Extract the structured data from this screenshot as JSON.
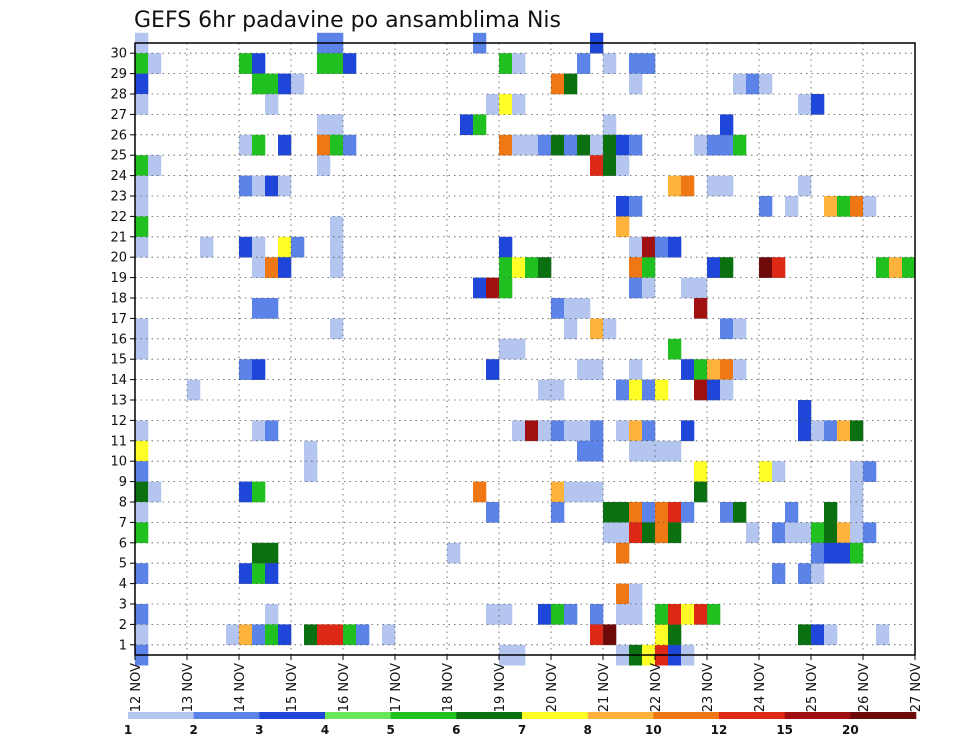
{
  "chart_data": {
    "type": "heatmap",
    "title": "GEFS 6hr padavine po ansamblima Nis",
    "xlabel": "",
    "ylabel": "",
    "x_ticks": [
      "12 NOV",
      "13 NOV",
      "14 NOV",
      "15 NOV",
      "16 NOV",
      "17 NOV",
      "18 NOV",
      "19 NOV",
      "20 NOV",
      "21 NOV",
      "22 NOV",
      "23 NOV",
      "24 NOV",
      "25 NOV",
      "26 NOV",
      "27 NOV"
    ],
    "y_ticks": [
      "1",
      "2",
      "3",
      "4",
      "5",
      "6",
      "7",
      "8",
      "9",
      "10",
      "11",
      "12",
      "13",
      "14",
      "15",
      "16",
      "17",
      "18",
      "19",
      "20",
      "21",
      "22",
      "23",
      "24",
      "25",
      "26",
      "27",
      "28",
      "29",
      "30"
    ],
    "x_range": [
      "12 NOV",
      "27 NOV"
    ],
    "y_range": [
      0,
      30
    ],
    "time_step_hours": 6,
    "grid": true,
    "legend_position": "bottom",
    "color_scale": {
      "levels": [
        "1",
        "2",
        "3",
        "4",
        "5",
        "6",
        "7",
        "8",
        "10",
        "12",
        "15",
        "20"
      ],
      "colors": [
        "#b4c6f0",
        "#5b83e8",
        "#1e46d8",
        "#6ae65a",
        "#20c020",
        "#0a7010",
        "#ffff28",
        "#ffb23c",
        "#f07814",
        "#dc2814",
        "#a01010",
        "#6e0a0a"
      ]
    },
    "cells": [
      [
        "12 NOV 00Z",
        30,
        1
      ],
      [
        "12 NOV 00Z",
        29,
        5
      ],
      [
        "12 NOV 06Z",
        29,
        1
      ],
      [
        "12 NOV 00Z",
        28,
        3
      ],
      [
        "12 NOV 00Z",
        27,
        1
      ],
      [
        "12 NOV 00Z",
        24,
        5
      ],
      [
        "12 NOV 06Z",
        24,
        1
      ],
      [
        "12 NOV 00Z",
        23,
        1
      ],
      [
        "12 NOV 00Z",
        22,
        1
      ],
      [
        "12 NOV 00Z",
        21,
        5
      ],
      [
        "12 NOV 00Z",
        20,
        1
      ],
      [
        "12 NOV 00Z",
        16,
        1
      ],
      [
        "12 NOV 00Z",
        15,
        1
      ],
      [
        "12 NOV 00Z",
        11,
        1
      ],
      [
        "12 NOV 00Z",
        10,
        7
      ],
      [
        "12 NOV 00Z",
        9,
        2
      ],
      [
        "12 NOV 00Z",
        8,
        6
      ],
      [
        "12 NOV 06Z",
        8,
        1
      ],
      [
        "12 NOV 00Z",
        7,
        1
      ],
      [
        "12 NOV 00Z",
        6,
        5
      ],
      [
        "12 NOV 00Z",
        4,
        2
      ],
      [
        "12 NOV 00Z",
        2,
        2
      ],
      [
        "12 NOV 00Z",
        1,
        1
      ],
      [
        "12 NOV 00Z",
        0,
        2
      ],
      [
        "13 NOV 06Z",
        20,
        1
      ],
      [
        "13 NOV 00Z",
        13,
        1
      ],
      [
        "14 NOV 00Z",
        29,
        5
      ],
      [
        "14 NOV 06Z",
        29,
        3
      ],
      [
        "14 NOV 06Z",
        28,
        5
      ],
      [
        "14 NOV 12Z",
        28,
        5
      ],
      [
        "14 NOV 18Z",
        28,
        3
      ],
      [
        "15 NOV 00Z",
        28,
        1
      ],
      [
        "14 NOV 12Z",
        27,
        1
      ],
      [
        "14 NOV 00Z",
        25,
        1
      ],
      [
        "14 NOV 06Z",
        25,
        5
      ],
      [
        "14 NOV 18Z",
        25,
        3
      ],
      [
        "14 NOV 00Z",
        23,
        2
      ],
      [
        "14 NOV 06Z",
        23,
        1
      ],
      [
        "14 NOV 12Z",
        23,
        3
      ],
      [
        "14 NOV 18Z",
        23,
        1
      ],
      [
        "14 NOV 00Z",
        20,
        3
      ],
      [
        "14 NOV 06Z",
        20,
        1
      ],
      [
        "14 NOV 18Z",
        20,
        7
      ],
      [
        "15 NOV 00Z",
        20,
        2
      ],
      [
        "14 NOV 06Z",
        19,
        1
      ],
      [
        "14 NOV 12Z",
        19,
        9
      ],
      [
        "14 NOV 18Z",
        19,
        3
      ],
      [
        "14 NOV 06Z",
        17,
        2
      ],
      [
        "14 NOV 12Z",
        17,
        2
      ],
      [
        "14 NOV 00Z",
        14,
        2
      ],
      [
        "14 NOV 06Z",
        14,
        3
      ],
      [
        "14 NOV 06Z",
        11,
        1
      ],
      [
        "14 NOV 12Z",
        11,
        2
      ],
      [
        "14 NOV 00Z",
        8,
        3
      ],
      [
        "14 NOV 06Z",
        8,
        5
      ],
      [
        "14 NOV 06Z",
        5,
        6
      ],
      [
        "14 NOV 12Z",
        5,
        6
      ],
      [
        "14 NOV 00Z",
        4,
        3
      ],
      [
        "14 NOV 06Z",
        4,
        5
      ],
      [
        "14 NOV 12Z",
        4,
        3
      ],
      [
        "14 NOV 12Z",
        2,
        1
      ],
      [
        "13 NOV 18Z",
        1,
        1
      ],
      [
        "14 NOV 00Z",
        1,
        8
      ],
      [
        "14 NOV 06Z",
        1,
        2
      ],
      [
        "14 NOV 12Z",
        1,
        5
      ],
      [
        "14 NOV 18Z",
        1,
        3
      ],
      [
        "15 NOV 06Z",
        1,
        6
      ],
      [
        "15 NOV 12Z",
        1,
        10
      ],
      [
        "15 NOV 18Z",
        1,
        10
      ],
      [
        "16 NOV 00Z",
        1,
        5
      ],
      [
        "16 NOV 06Z",
        1,
        2
      ],
      [
        "16 NOV 18Z",
        1,
        1
      ],
      [
        "15 NOV 12Z",
        30,
        2
      ],
      [
        "15 NOV 18Z",
        30,
        2
      ],
      [
        "15 NOV 12Z",
        29,
        5
      ],
      [
        "15 NOV 18Z",
        29,
        5
      ],
      [
        "16 NOV 00Z",
        29,
        3
      ],
      [
        "15 NOV 12Z",
        26,
        1
      ],
      [
        "15 NOV 18Z",
        26,
        1
      ],
      [
        "15 NOV 12Z",
        25,
        9
      ],
      [
        "15 NOV 18Z",
        25,
        5
      ],
      [
        "16 NOV 00Z",
        25,
        2
      ],
      [
        "15 NOV 12Z",
        24,
        1
      ],
      [
        "15 NOV 18Z",
        21,
        1
      ],
      [
        "15 NOV 18Z",
        20,
        1
      ],
      [
        "15 NOV 18Z",
        19,
        1
      ],
      [
        "15 NOV 18Z",
        16,
        1
      ],
      [
        "15 NOV 06Z",
        10,
        1
      ],
      [
        "15 NOV 06Z",
        9,
        1
      ],
      [
        "18 NOV 00Z",
        5,
        1
      ],
      [
        "18 NOV 12Z",
        30,
        2
      ],
      [
        "19 NOV 00Z",
        29,
        5
      ],
      [
        "19 NOV 06Z",
        29,
        1
      ],
      [
        "18 NOV 18Z",
        27,
        1
      ],
      [
        "19 NOV 00Z",
        27,
        7
      ],
      [
        "19 NOV 06Z",
        27,
        1
      ],
      [
        "18 NOV 06Z",
        26,
        3
      ],
      [
        "18 NOV 12Z",
        26,
        5
      ],
      [
        "19 NOV 00Z",
        25,
        9
      ],
      [
        "19 NOV 06Z",
        25,
        1
      ],
      [
        "19 NOV 12Z",
        25,
        1
      ],
      [
        "19 NOV 18Z",
        25,
        2
      ],
      [
        "20 NOV 00Z",
        25,
        6
      ],
      [
        "20 NOV 06Z",
        25,
        2
      ],
      [
        "20 NOV 12Z",
        25,
        6
      ],
      [
        "20 NOV 18Z",
        25,
        1
      ],
      [
        "19 NOV 00Z",
        20,
        3
      ],
      [
        "19 NOV 00Z",
        19,
        5
      ],
      [
        "19 NOV 06Z",
        19,
        7
      ],
      [
        "19 NOV 12Z",
        19,
        5
      ],
      [
        "19 NOV 18Z",
        19,
        6
      ],
      [
        "18 NOV 12Z",
        18,
        3
      ],
      [
        "18 NOV 18Z",
        18,
        11
      ],
      [
        "19 NOV 00Z",
        18,
        5
      ],
      [
        "20 NOV 00Z",
        17,
        2
      ],
      [
        "20 NOV 06Z",
        17,
        1
      ],
      [
        "20 NOV 12Z",
        17,
        1
      ],
      [
        "20 NOV 06Z",
        16,
        1
      ],
      [
        "19 NOV 00Z",
        15,
        1
      ],
      [
        "19 NOV 06Z",
        15,
        1
      ],
      [
        "18 NOV 18Z",
        14,
        3
      ],
      [
        "19 NOV 18Z",
        13,
        1
      ],
      [
        "20 NOV 00Z",
        13,
        1
      ],
      [
        "19 NOV 06Z",
        11,
        1
      ],
      [
        "19 NOV 12Z",
        11,
        11
      ],
      [
        "19 NOV 18Z",
        11,
        1
      ],
      [
        "20 NOV 00Z",
        11,
        2
      ],
      [
        "20 NOV 06Z",
        11,
        1
      ],
      [
        "20 NOV 12Z",
        11,
        1
      ],
      [
        "20 NOV 18Z",
        11,
        2
      ],
      [
        "18 NOV 12Z",
        8,
        9
      ],
      [
        "20 NOV 00Z",
        8,
        8
      ],
      [
        "20 NOV 06Z",
        8,
        1
      ],
      [
        "20 NOV 12Z",
        8,
        1
      ],
      [
        "20 NOV 18Z",
        8,
        1
      ],
      [
        "18 NOV 18Z",
        7,
        2
      ],
      [
        "20 NOV 00Z",
        7,
        2
      ],
      [
        "18 NOV 18Z",
        2,
        1
      ],
      [
        "19 NOV 00Z",
        2,
        1
      ],
      [
        "19 NOV 18Z",
        2,
        3
      ],
      [
        "20 NOV 00Z",
        2,
        5
      ],
      [
        "20 NOV 06Z",
        2,
        2
      ],
      [
        "20 NOV 18Z",
        2,
        2
      ],
      [
        "19 NOV 00Z",
        0,
        1
      ],
      [
        "19 NOV 06Z",
        0,
        1
      ],
      [
        "20 NOV 18Z",
        30,
        3
      ],
      [
        "20 NOV 12Z",
        29,
        2
      ],
      [
        "20 NOV 00Z",
        28,
        9
      ],
      [
        "20 NOV 06Z",
        28,
        6
      ],
      [
        "21 NOV 00Z",
        29,
        1
      ],
      [
        "21 NOV 12Z",
        29,
        2
      ],
      [
        "21 NOV 18Z",
        29,
        2
      ],
      [
        "21 NOV 12Z",
        28,
        1
      ],
      [
        "21 NOV 00Z",
        26,
        1
      ],
      [
        "21 NOV 00Z",
        25,
        6
      ],
      [
        "21 NOV 06Z",
        25,
        3
      ],
      [
        "21 NOV 12Z",
        25,
        2
      ],
      [
        "20 NOV 18Z",
        24,
        10
      ],
      [
        "21 NOV 00Z",
        24,
        6
      ],
      [
        "21 NOV 06Z",
        24,
        1
      ],
      [
        "21 NOV 06Z",
        22,
        3
      ],
      [
        "21 NOV 12Z",
        22,
        2
      ],
      [
        "21 NOV 06Z",
        21,
        8
      ],
      [
        "21 NOV 12Z",
        20,
        1
      ],
      [
        "21 NOV 18Z",
        20,
        11
      ],
      [
        "22 NOV 00Z",
        20,
        2
      ],
      [
        "22 NOV 06Z",
        20,
        3
      ],
      [
        "21 NOV 12Z",
        19,
        9
      ],
      [
        "21 NOV 18Z",
        19,
        5
      ],
      [
        "21 NOV 12Z",
        18,
        2
      ],
      [
        "21 NOV 18Z",
        18,
        1
      ],
      [
        "20 NOV 18Z",
        16,
        8
      ],
      [
        "21 NOV 00Z",
        16,
        1
      ],
      [
        "20 NOV 12Z",
        14,
        1
      ],
      [
        "20 NOV 18Z",
        14,
        1
      ],
      [
        "21 NOV 12Z",
        14,
        1
      ],
      [
        "21 NOV 06Z",
        13,
        2
      ],
      [
        "21 NOV 12Z",
        13,
        7
      ],
      [
        "21 NOV 18Z",
        13,
        2
      ],
      [
        "22 NOV 00Z",
        13,
        7
      ],
      [
        "21 NOV 06Z",
        11,
        1
      ],
      [
        "21 NOV 12Z",
        11,
        8
      ],
      [
        "21 NOV 18Z",
        11,
        2
      ],
      [
        "20 NOV 12Z",
        10,
        2
      ],
      [
        "20 NOV 18Z",
        10,
        2
      ],
      [
        "21 NOV 12Z",
        10,
        1
      ],
      [
        "21 NOV 18Z",
        10,
        1
      ],
      [
        "21 NOV 00Z",
        7,
        6
      ],
      [
        "21 NOV 06Z",
        7,
        6
      ],
      [
        "21 NOV 12Z",
        7,
        9
      ],
      [
        "21 NOV 18Z",
        7,
        2
      ],
      [
        "21 NOV 00Z",
        6,
        1
      ],
      [
        "21 NOV 06Z",
        6,
        1
      ],
      [
        "21 NOV 12Z",
        6,
        10
      ],
      [
        "21 NOV 18Z",
        6,
        6
      ],
      [
        "21 NOV 06Z",
        5,
        9
      ],
      [
        "21 NOV 06Z",
        3,
        9
      ],
      [
        "21 NOV 12Z",
        3,
        1
      ],
      [
        "21 NOV 06Z",
        2,
        1
      ],
      [
        "21 NOV 12Z",
        2,
        1
      ],
      [
        "20 NOV 18Z",
        1,
        10
      ],
      [
        "21 NOV 00Z",
        1,
        12
      ],
      [
        "21 NOV 06Z",
        0,
        1
      ],
      [
        "21 NOV 12Z",
        0,
        6
      ],
      [
        "21 NOV 18Z",
        0,
        7
      ],
      [
        "22 NOV 00Z",
        0,
        10
      ],
      [
        "22 NOV 06Z",
        0,
        3
      ],
      [
        "22 NOV 12Z",
        0,
        1
      ],
      [
        "22 NOV 00Z",
        1,
        7
      ],
      [
        "22 NOV 06Z",
        1,
        6
      ],
      [
        "22 NOV 00Z",
        2,
        5
      ],
      [
        "22 NOV 06Z",
        2,
        10
      ],
      [
        "22 NOV 12Z",
        2,
        7
      ],
      [
        "22 NOV 18Z",
        2,
        10
      ],
      [
        "23 NOV 00Z",
        2,
        5
      ],
      [
        "22 NOV 06Z",
        23,
        8
      ],
      [
        "22 NOV 12Z",
        23,
        9
      ],
      [
        "23 NOV 00Z",
        23,
        1
      ],
      [
        "23 NOV 06Z",
        23,
        1
      ],
      [
        "22 NOV 18Z",
        25,
        1
      ],
      [
        "23 NOV 00Z",
        25,
        2
      ],
      [
        "23 NOV 06Z",
        25,
        2
      ],
      [
        "23 NOV 12Z",
        25,
        5
      ],
      [
        "23 NOV 06Z",
        26,
        3
      ],
      [
        "23 NOV 12Z",
        28,
        1
      ],
      [
        "23 NOV 18Z",
        28,
        2
      ],
      [
        "24 NOV 00Z",
        28,
        1
      ],
      [
        "23 NOV 00Z",
        19,
        3
      ],
      [
        "23 NOV 06Z",
        19,
        6
      ],
      [
        "24 NOV 00Z",
        19,
        12
      ],
      [
        "24 NOV 06Z",
        19,
        10
      ],
      [
        "22 NOV 12Z",
        18,
        1
      ],
      [
        "22 NOV 18Z",
        18,
        1
      ],
      [
        "22 NOV 18Z",
        17,
        11
      ],
      [
        "23 NOV 06Z",
        16,
        2
      ],
      [
        "23 NOV 12Z",
        16,
        1
      ],
      [
        "22 NOV 06Z",
        15,
        5
      ],
      [
        "22 NOV 12Z",
        14,
        3
      ],
      [
        "22 NOV 18Z",
        14,
        5
      ],
      [
        "23 NOV 00Z",
        14,
        8
      ],
      [
        "23 NOV 06Z",
        14,
        9
      ],
      [
        "23 NOV 12Z",
        14,
        1
      ],
      [
        "22 NOV 18Z",
        13,
        11
      ],
      [
        "23 NOV 00Z",
        13,
        3
      ],
      [
        "23 NOV 06Z",
        13,
        1
      ],
      [
        "22 NOV 12Z",
        11,
        3
      ],
      [
        "22 NOV 00Z",
        10,
        1
      ],
      [
        "22 NOV 06Z",
        10,
        1
      ],
      [
        "22 NOV 18Z",
        9,
        7
      ],
      [
        "24 NOV 00Z",
        9,
        7
      ],
      [
        "24 NOV 06Z",
        9,
        1
      ],
      [
        "22 NOV 18Z",
        8,
        6
      ],
      [
        "22 NOV 00Z",
        7,
        9
      ],
      [
        "22 NOV 06Z",
        7,
        10
      ],
      [
        "22 NOV 12Z",
        7,
        2
      ],
      [
        "23 NOV 06Z",
        7,
        2
      ],
      [
        "23 NOV 12Z",
        7,
        6
      ],
      [
        "22 NOV 00Z",
        6,
        9
      ],
      [
        "22 NOV 06Z",
        6,
        6
      ],
      [
        "23 NOV 18Z",
        6,
        1
      ],
      [
        "24 NOV 06Z",
        4,
        2
      ],
      [
        "24 NOV 18Z",
        4,
        2
      ],
      [
        "25 NOV 00Z",
        4,
        1
      ],
      [
        "24 NOV 00Z",
        22,
        2
      ],
      [
        "24 NOV 12Z",
        22,
        1
      ],
      [
        "25 NOV 06Z",
        22,
        8
      ],
      [
        "25 NOV 12Z",
        22,
        5
      ],
      [
        "25 NOV 18Z",
        22,
        9
      ],
      [
        "26 NOV 00Z",
        22,
        1
      ],
      [
        "24 NOV 18Z",
        27,
        1
      ],
      [
        "25 NOV 00Z",
        27,
        3
      ],
      [
        "24 NOV 18Z",
        23,
        1
      ],
      [
        "24 NOV 18Z",
        12,
        3
      ],
      [
        "24 NOV 18Z",
        11,
        3
      ],
      [
        "25 NOV 00Z",
        11,
        1
      ],
      [
        "25 NOV 06Z",
        11,
        2
      ],
      [
        "25 NOV 12Z",
        11,
        8
      ],
      [
        "25 NOV 18Z",
        11,
        6
      ],
      [
        "25 NOV 18Z",
        9,
        1
      ],
      [
        "26 NOV 00Z",
        9,
        2
      ],
      [
        "25 NOV 18Z",
        8,
        1
      ],
      [
        "24 NOV 12Z",
        7,
        2
      ],
      [
        "25 NOV 06Z",
        7,
        6
      ],
      [
        "25 NOV 18Z",
        7,
        1
      ],
      [
        "24 NOV 06Z",
        6,
        2
      ],
      [
        "24 NOV 12Z",
        6,
        1
      ],
      [
        "24 NOV 18Z",
        6,
        1
      ],
      [
        "25 NOV 00Z",
        6,
        5
      ],
      [
        "25 NOV 06Z",
        6,
        6
      ],
      [
        "25 NOV 12Z",
        6,
        8
      ],
      [
        "25 NOV 18Z",
        6,
        1
      ],
      [
        "26 NOV 00Z",
        6,
        2
      ],
      [
        "25 NOV 00Z",
        5,
        2
      ],
      [
        "25 NOV 06Z",
        5,
        3
      ],
      [
        "25 NOV 12Z",
        5,
        3
      ],
      [
        "25 NOV 18Z",
        5,
        5
      ],
      [
        "24 NOV 18Z",
        1,
        6
      ],
      [
        "25 NOV 00Z",
        1,
        3
      ],
      [
        "25 NOV 06Z",
        1,
        1
      ],
      [
        "26 NOV 06Z",
        1,
        1
      ],
      [
        "26 NOV 06Z",
        19,
        5
      ],
      [
        "26 NOV 12Z",
        19,
        8
      ],
      [
        "26 NOV 18Z",
        19,
        5
      ]
    ]
  }
}
